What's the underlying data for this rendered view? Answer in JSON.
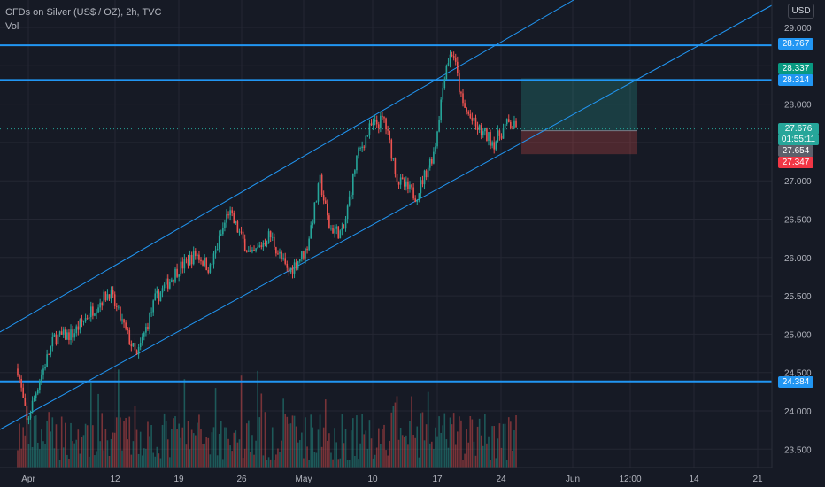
{
  "header": {
    "title": "CFDs on Silver (US$ / OZ), 2h, TVC",
    "indicator": "Vol",
    "currency": "USD"
  },
  "price_axis": {
    "ticks": [
      "29.000",
      "28.000",
      "27.000",
      "26.500",
      "26.000",
      "25.500",
      "25.000",
      "24.500",
      "24.000",
      "23.500"
    ],
    "labels": {
      "resistance_top": "28.767",
      "target": "28.337",
      "resistance_2": "28.314",
      "last": "27.676",
      "countdown": "01:55:11",
      "entry": "27.654",
      "stop": "27.347",
      "support": "24.384"
    }
  },
  "time_axis": {
    "ticks": [
      "Apr",
      "12",
      "19",
      "26",
      "May",
      "10",
      "17",
      "24",
      "Jun",
      "12:00",
      "14",
      "21"
    ]
  },
  "colors": {
    "background": "#161a25",
    "grid": "#242733",
    "up": "#26a69a",
    "down": "#ef5350",
    "hline": "#2196f3",
    "channel": "#2196f3",
    "target_zone": "#26a69a",
    "stop_zone": "#ef5350"
  },
  "chart_data": {
    "type": "candlestick",
    "symbol": "CFDs on Silver (US$ / OZ), 2h, TVC",
    "y_range": [
      23.33,
      29.25
    ],
    "horizontal_lines": [
      28.767,
      28.314,
      24.384
    ],
    "long_position": {
      "entry": 27.654,
      "target": 28.337,
      "stop": 27.347
    },
    "last_price": 27.676,
    "path": [
      {
        "d": 0.0,
        "p": 24.55
      },
      {
        "d": 1.0,
        "p": 23.85
      },
      {
        "d": 2.5,
        "p": 24.45
      },
      {
        "d": 4.0,
        "p": 24.95
      },
      {
        "d": 6.0,
        "p": 25.0
      },
      {
        "d": 8.0,
        "p": 25.3
      },
      {
        "d": 10.0,
        "p": 25.55
      },
      {
        "d": 13.0,
        "p": 24.7
      },
      {
        "d": 15.0,
        "p": 25.45
      },
      {
        "d": 17.5,
        "p": 25.85
      },
      {
        "d": 19.5,
        "p": 26.05
      },
      {
        "d": 21.0,
        "p": 25.85
      },
      {
        "d": 23.0,
        "p": 26.6
      },
      {
        "d": 25.5,
        "p": 26.0
      },
      {
        "d": 27.5,
        "p": 26.3
      },
      {
        "d": 29.5,
        "p": 25.8
      },
      {
        "d": 31.5,
        "p": 26.1
      },
      {
        "d": 33.0,
        "p": 27.0
      },
      {
        "d": 34.0,
        "p": 26.4
      },
      {
        "d": 35.5,
        "p": 26.3
      },
      {
        "d": 37.0,
        "p": 27.3
      },
      {
        "d": 38.5,
        "p": 27.7
      },
      {
        "d": 40.0,
        "p": 27.8
      },
      {
        "d": 41.5,
        "p": 27.0
      },
      {
        "d": 43.5,
        "p": 26.8
      },
      {
        "d": 45.5,
        "p": 27.4
      },
      {
        "d": 46.7,
        "p": 28.5
      },
      {
        "d": 47.5,
        "p": 28.7
      },
      {
        "d": 48.5,
        "p": 28.0
      },
      {
        "d": 50.0,
        "p": 27.7
      },
      {
        "d": 52.0,
        "p": 27.5
      },
      {
        "d": 53.5,
        "p": 27.75
      },
      {
        "d": 54.5,
        "p": 27.67
      }
    ],
    "time_end_day": 54.5
  }
}
